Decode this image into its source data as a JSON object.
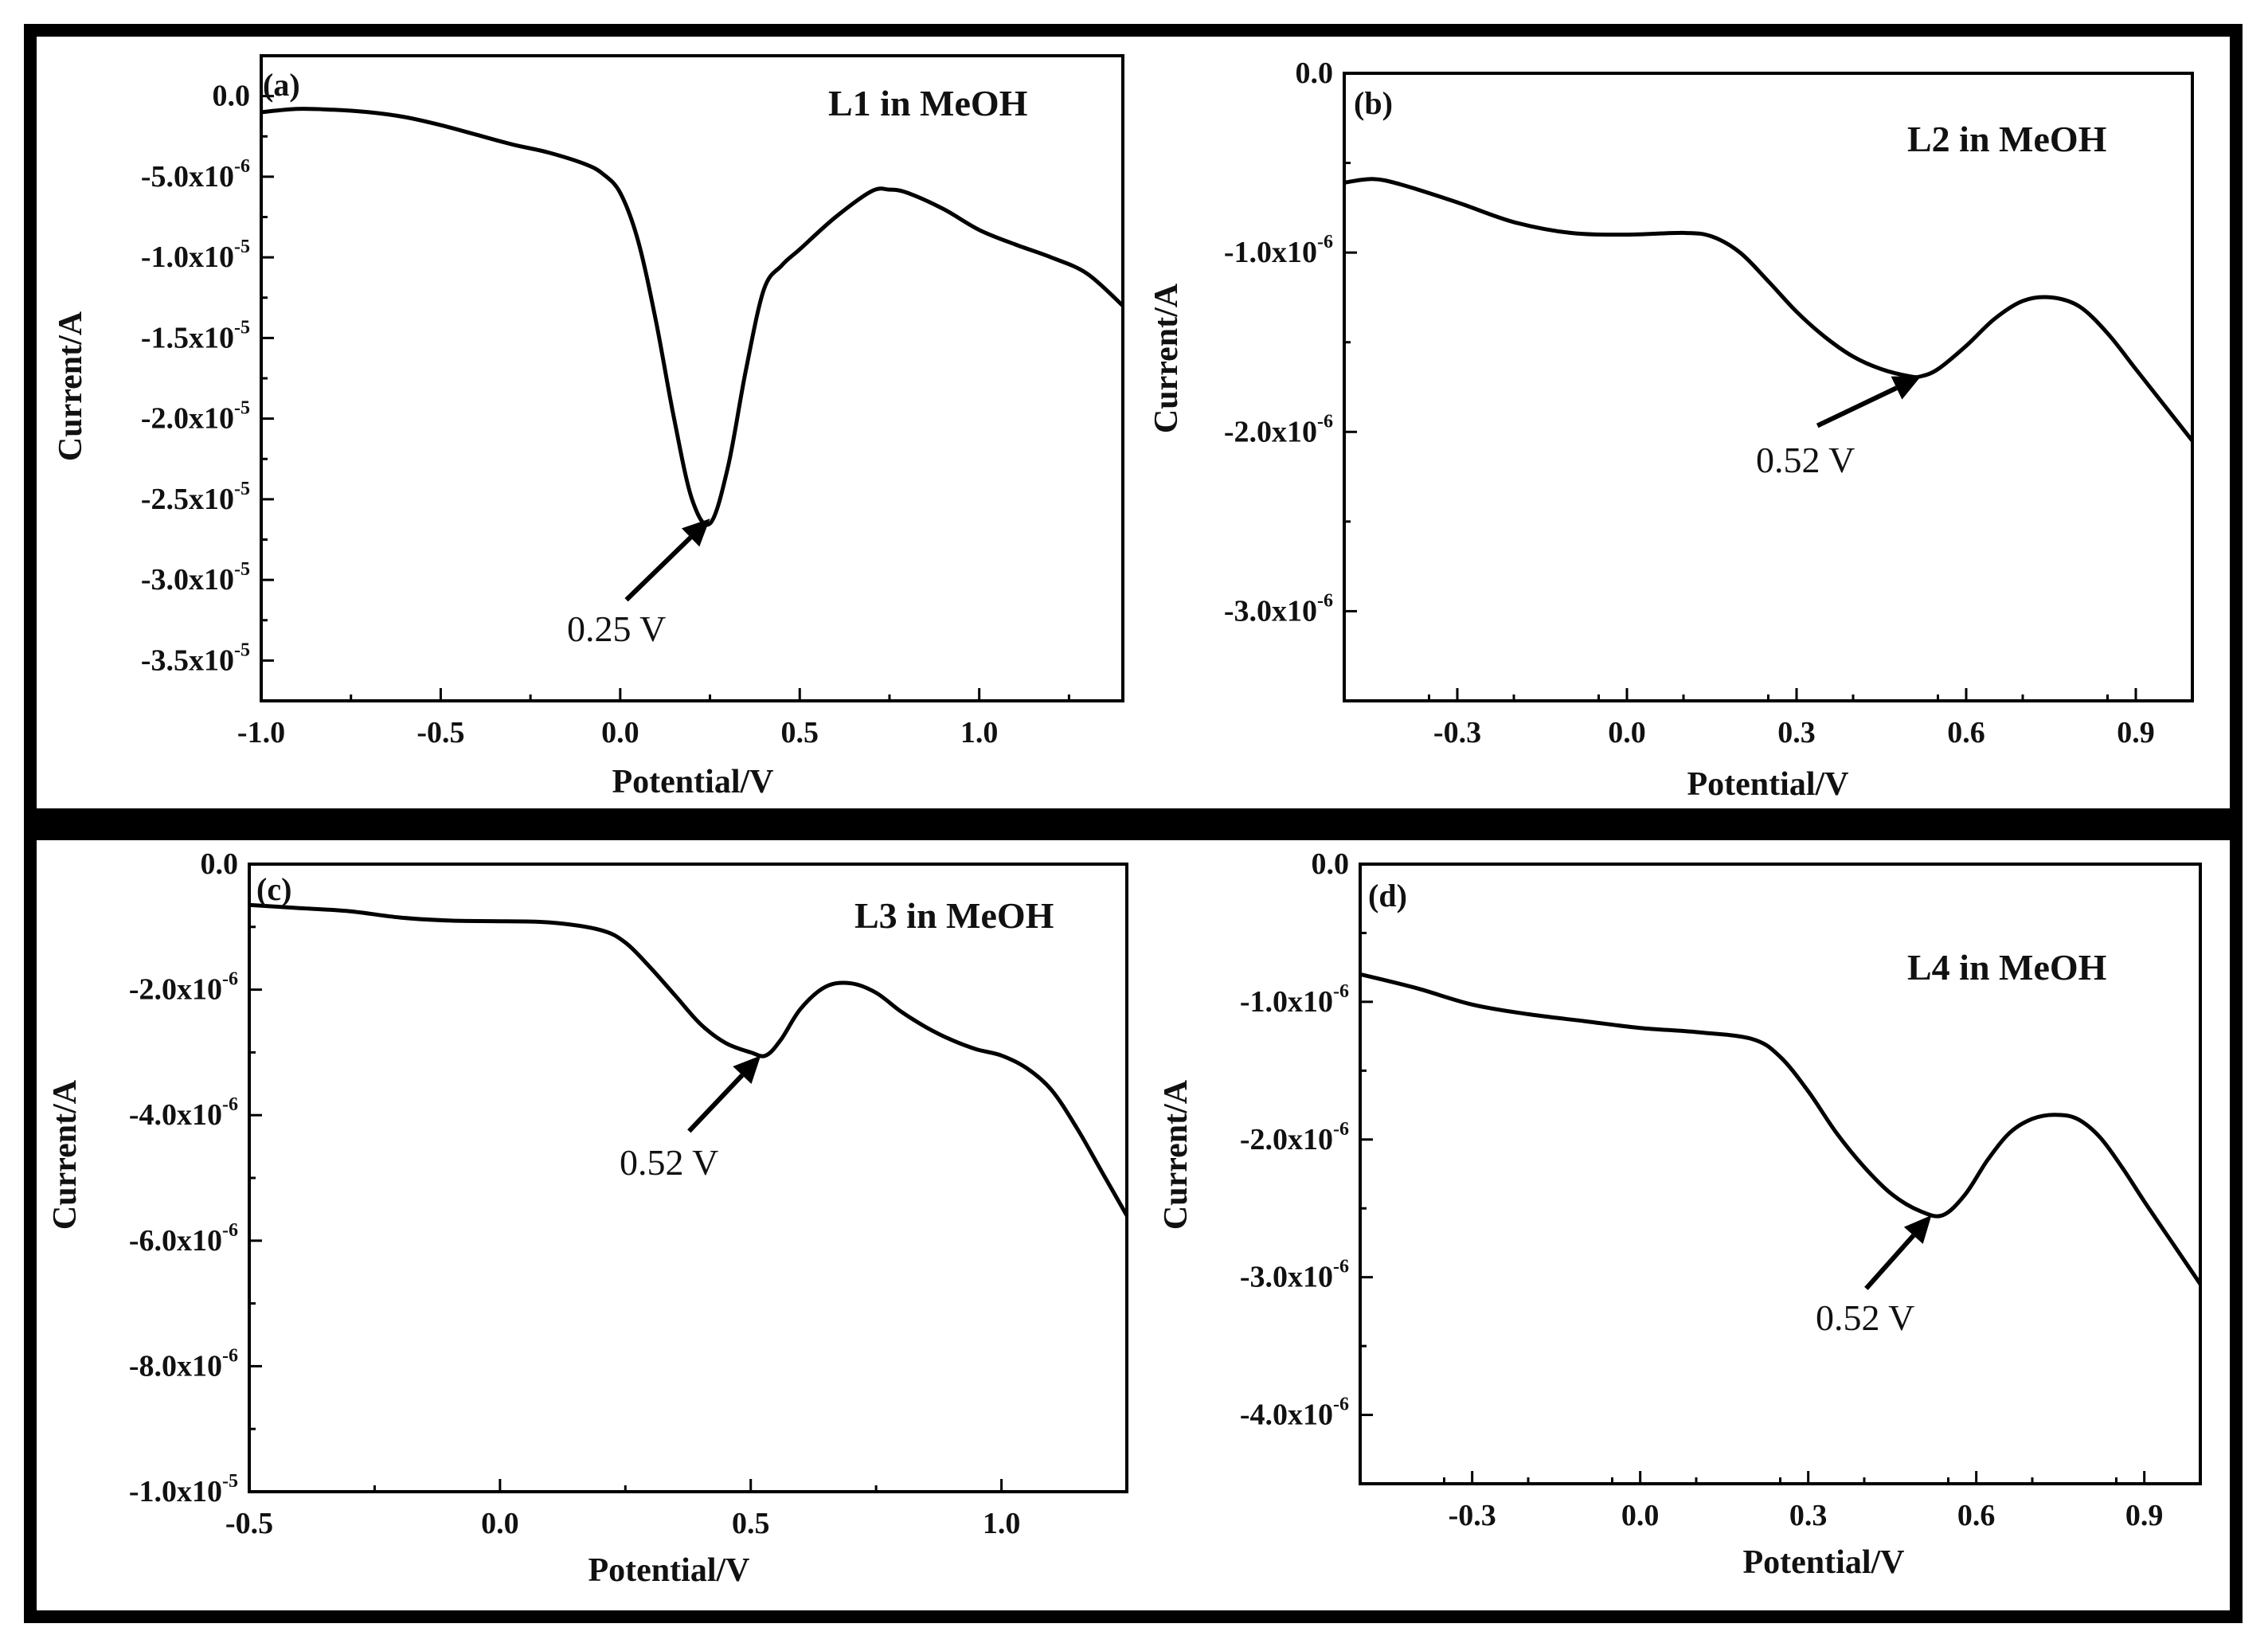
{
  "chart_data": [
    {
      "type": "line",
      "panel_label": "(a)",
      "series_label": "L1 in MeOH",
      "xlabel": "Potential/V",
      "ylabel": "Current/A",
      "xlim": [
        -1.0,
        1.4
      ],
      "ylim": [
        -3.75e-05,
        2.5e-06
      ],
      "x_ticks": [
        {
          "value": -1.0,
          "label": "-1.0"
        },
        {
          "value": -0.5,
          "label": "-0.5"
        },
        {
          "value": 0.0,
          "label": "0.0"
        },
        {
          "value": 0.5,
          "label": "0.5"
        },
        {
          "value": 1.0,
          "label": "1.0"
        }
      ],
      "y_ticks": [
        {
          "value": 0,
          "mantissa": "0.0",
          "exp": ""
        },
        {
          "value": -5e-06,
          "mantissa": "-5.0x10",
          "exp": "-6"
        },
        {
          "value": -1e-05,
          "mantissa": "-1.0x10",
          "exp": "-5"
        },
        {
          "value": -1.5e-05,
          "mantissa": "-1.5x10",
          "exp": "-5"
        },
        {
          "value": -2e-05,
          "mantissa": "-2.0x10",
          "exp": "-5"
        },
        {
          "value": -2.5e-05,
          "mantissa": "-2.5x10",
          "exp": "-5"
        },
        {
          "value": -3e-05,
          "mantissa": "-3.0x10",
          "exp": "-5"
        },
        {
          "value": -3.5e-05,
          "mantissa": "-3.5x10",
          "exp": "-5"
        }
      ],
      "x": [
        -1.0,
        -0.9,
        -0.8,
        -0.7,
        -0.6,
        -0.5,
        -0.4,
        -0.3,
        -0.2,
        -0.1,
        -0.05,
        0.0,
        0.05,
        0.1,
        0.15,
        0.2,
        0.25,
        0.3,
        0.35,
        0.4,
        0.45,
        0.5,
        0.6,
        0.7,
        0.75,
        0.8,
        0.9,
        1.0,
        1.1,
        1.2,
        1.3,
        1.4
      ],
      "values": [
        -1e-06,
        -8e-07,
        -8.5e-07,
        -1e-06,
        -1.3e-06,
        -1.8e-06,
        -2.4e-06,
        -3e-06,
        -3.5e-06,
        -4.2e-06,
        -4.8e-06,
        -6e-06,
        -9e-06,
        -1.4e-05,
        -2e-05,
        -2.5e-05,
        -2.65e-05,
        -2.3e-05,
        -1.7e-05,
        -1.2e-05,
        -1.05e-05,
        -9.5e-06,
        -7.5e-06,
        -5.9e-06,
        -5.8e-06,
        -6e-06,
        -7e-06,
        -8.3e-06,
        -9.2e-06,
        -1e-05,
        -1.1e-05,
        -1.3e-05
      ],
      "annotation": {
        "text": "0.25 V",
        "x": 0.25,
        "y": -2.62e-05
      }
    },
    {
      "type": "line",
      "panel_label": "(b)",
      "series_label": "L2 in MeOH",
      "xlabel": "Potential/V",
      "ylabel": "Current/A",
      "xlim": [
        -0.5,
        1.0
      ],
      "ylim": [
        -3.5e-06,
        0.0
      ],
      "x_ticks": [
        {
          "value": -0.3,
          "label": "-0.3"
        },
        {
          "value": 0.0,
          "label": "0.0"
        },
        {
          "value": 0.3,
          "label": "0.3"
        },
        {
          "value": 0.6,
          "label": "0.6"
        },
        {
          "value": 0.9,
          "label": "0.9"
        }
      ],
      "y_ticks": [
        {
          "value": 0,
          "mantissa": "0.0",
          "exp": ""
        },
        {
          "value": -1e-06,
          "mantissa": "-1.0x10",
          "exp": "-6"
        },
        {
          "value": -2e-06,
          "mantissa": "-2.0x10",
          "exp": "-6"
        },
        {
          "value": -3e-06,
          "mantissa": "-3.0x10",
          "exp": "-6"
        }
      ],
      "x": [
        -0.5,
        -0.45,
        -0.4,
        -0.3,
        -0.2,
        -0.1,
        0.0,
        0.1,
        0.15,
        0.2,
        0.25,
        0.3,
        0.35,
        0.4,
        0.45,
        0.5,
        0.52,
        0.55,
        0.6,
        0.65,
        0.7,
        0.75,
        0.8,
        0.85,
        0.9,
        0.95,
        1.0
      ],
      "values": [
        -6.1e-07,
        -5.9e-07,
        -6.2e-07,
        -7.2e-07,
        -8.3e-07,
        -8.9e-07,
        -9e-07,
        -8.9e-07,
        -9.1e-07,
        -1e-06,
        -1.16e-06,
        -1.33e-06,
        -1.47e-06,
        -1.58e-06,
        -1.65e-06,
        -1.69e-06,
        -1.69e-06,
        -1.65e-06,
        -1.52e-06,
        -1.37e-06,
        -1.27e-06,
        -1.25e-06,
        -1.3e-06,
        -1.45e-06,
        -1.65e-06,
        -1.85e-06,
        -2.05e-06
      ],
      "annotation": {
        "text": "0.52 V",
        "x": 0.52,
        "y": -1.69e-06
      }
    },
    {
      "type": "line",
      "panel_label": "(c)",
      "series_label": "L3 in MeOH",
      "xlabel": "Potential/V",
      "ylabel": "Current/A",
      "xlim": [
        -0.5,
        1.25
      ],
      "ylim": [
        -1e-05,
        0.0
      ],
      "x_ticks": [
        {
          "value": -0.5,
          "label": "-0.5"
        },
        {
          "value": 0.0,
          "label": "0.0"
        },
        {
          "value": 0.5,
          "label": "0.5"
        },
        {
          "value": 1.0,
          "label": "1.0"
        }
      ],
      "y_ticks": [
        {
          "value": 0,
          "mantissa": "0.0",
          "exp": ""
        },
        {
          "value": -2e-06,
          "mantissa": "-2.0x10",
          "exp": "-6"
        },
        {
          "value": -4e-06,
          "mantissa": "-4.0x10",
          "exp": "-6"
        },
        {
          "value": -6e-06,
          "mantissa": "-6.0x10",
          "exp": "-6"
        },
        {
          "value": -8e-06,
          "mantissa": "-8.0x10",
          "exp": "-6"
        },
        {
          "value": -1e-05,
          "mantissa": "-1.0x10",
          "exp": "-5"
        }
      ],
      "x": [
        -0.5,
        -0.4,
        -0.3,
        -0.2,
        -0.1,
        0.0,
        0.1,
        0.2,
        0.25,
        0.3,
        0.35,
        0.4,
        0.45,
        0.5,
        0.53,
        0.56,
        0.6,
        0.65,
        0.7,
        0.75,
        0.8,
        0.85,
        0.9,
        0.95,
        1.0,
        1.05,
        1.1,
        1.15,
        1.2,
        1.25
      ],
      "values": [
        -6.5e-07,
        -7e-07,
        -7.5e-07,
        -8.5e-07,
        -9e-07,
        -9.1e-07,
        -9.3e-07,
        -1.05e-06,
        -1.25e-06,
        -1.65e-06,
        -2.1e-06,
        -2.55e-06,
        -2.85e-06,
        -3e-06,
        -3.05e-06,
        -2.8e-06,
        -2.3e-06,
        -1.95e-06,
        -1.9e-06,
        -2.05e-06,
        -2.35e-06,
        -2.6e-06,
        -2.8e-06,
        -2.95e-06,
        -3.05e-06,
        -3.25e-06,
        -3.6e-06,
        -4.2e-06,
        -4.9e-06,
        -5.6e-06
      ],
      "annotation": {
        "text": "0.52 V",
        "x": 0.52,
        "y": -3.05e-06
      }
    },
    {
      "type": "line",
      "panel_label": "(d)",
      "series_label": "L4 in MeOH",
      "xlabel": "Potential/V",
      "ylabel": "Current/A",
      "xlim": [
        -0.5,
        1.0
      ],
      "ylim": [
        -4.5e-06,
        0.0
      ],
      "x_ticks": [
        {
          "value": -0.3,
          "label": "-0.3"
        },
        {
          "value": 0.0,
          "label": "0.0"
        },
        {
          "value": 0.3,
          "label": "0.3"
        },
        {
          "value": 0.6,
          "label": "0.6"
        },
        {
          "value": 0.9,
          "label": "0.9"
        }
      ],
      "y_ticks": [
        {
          "value": 0,
          "mantissa": "0.0",
          "exp": ""
        },
        {
          "value": -1e-06,
          "mantissa": "-1.0x10",
          "exp": "-6"
        },
        {
          "value": -2e-06,
          "mantissa": "-2.0x10",
          "exp": "-6"
        },
        {
          "value": -3e-06,
          "mantissa": "-3.0x10",
          "exp": "-6"
        },
        {
          "value": -4e-06,
          "mantissa": "-4.0x10",
          "exp": "-6"
        }
      ],
      "x": [
        -0.5,
        -0.4,
        -0.3,
        -0.2,
        -0.1,
        0.0,
        0.1,
        0.2,
        0.25,
        0.3,
        0.35,
        0.4,
        0.45,
        0.5,
        0.54,
        0.58,
        0.62,
        0.66,
        0.7,
        0.74,
        0.78,
        0.82,
        0.86,
        0.9,
        0.95,
        1.0
      ],
      "values": [
        -8e-07,
        -9e-07,
        -1.02e-06,
        -1.09e-06,
        -1.14e-06,
        -1.19e-06,
        -1.22e-06,
        -1.27e-06,
        -1.4e-06,
        -1.65e-06,
        -1.95e-06,
        -2.2e-06,
        -2.4e-06,
        -2.52e-06,
        -2.55e-06,
        -2.4e-06,
        -2.15e-06,
        -1.95e-06,
        -1.85e-06,
        -1.82e-06,
        -1.85e-06,
        -1.98e-06,
        -2.2e-06,
        -2.45e-06,
        -2.75e-06,
        -3.05e-06
      ],
      "annotation": {
        "text": "0.52 V",
        "x": 0.52,
        "y": -2.55e-06
      }
    }
  ]
}
